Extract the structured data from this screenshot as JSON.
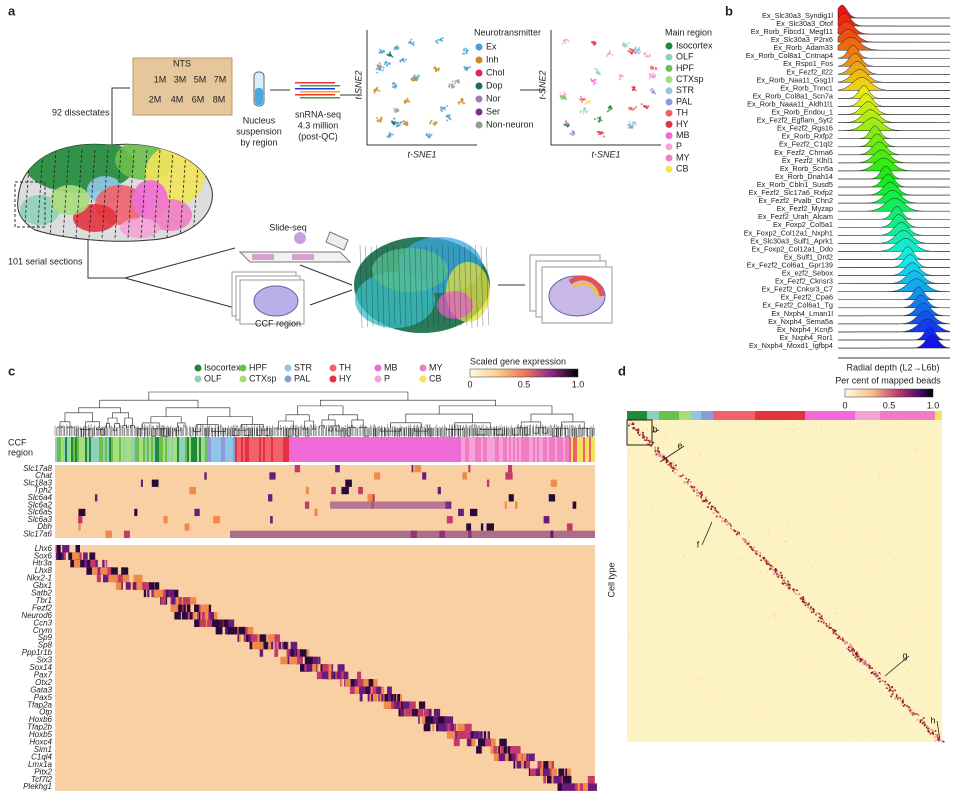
{
  "panel_a": {
    "label": "a",
    "nts": {
      "title": "NTS",
      "slices": [
        "1M",
        "3M",
        "5M",
        "7M",
        "2M",
        "4M",
        "6M",
        "8M"
      ]
    },
    "dissectates": "92 dissectates",
    "nucleus": [
      "Nucleus",
      "suspension",
      "by region"
    ],
    "snrnaseq": [
      "snRNA-seq",
      "4.3 million",
      "(post-QC)"
    ],
    "tsne_y": "t-SNE2",
    "tsne_x": "t-SNE1",
    "neurotransmitter": {
      "title": "Neurotransmitter",
      "items": [
        "Ex",
        "Inh",
        "Chol",
        "Dop",
        "Nor",
        "Ser",
        "Non-neuron"
      ]
    },
    "main_region": {
      "title": "Main region",
      "items": [
        "Isocortex",
        "OLF",
        "HPF",
        "CTXsp",
        "STR",
        "PAL",
        "TH",
        "HY",
        "MB",
        "P",
        "MY",
        "CB"
      ]
    },
    "sections": "101 serial sections",
    "slideseq": "Slide-seq",
    "ccf": "CCF region"
  },
  "panel_b": {
    "label": "b",
    "cell_types": [
      "Ex_Slc30a3_Syndig1l",
      "Ex_Slc30a3_Otof",
      "Ex_Rorb_Fibcd1_Megf11",
      "Ex_Slc30a3_P2rx6",
      "Ex_Rorb_Adam33",
      "Ex_Rorb_Col8a1_Cntnap4",
      "Ex_Rspo1_Fos",
      "Ex_Fezf2_Il22",
      "Ex_Rorb_Naa11_Gsg1l",
      "Ex_Rorb_Tnnc1",
      "Ex_Rorb_Col8a1_Scn7a",
      "Ex_Rorb_Naaa11_Aldh1l1",
      "Ex_Rorb_Endou_1",
      "Ex_Fezf2_Egflam_Syt2",
      "Ex_Fezf2_Rgs16",
      "Ex_Rorb_Rxfp2",
      "Ex_Fezf2_C1ql2",
      "Ex_Fezf2_Chrna6",
      "Ex_Fezf2_Klhl1",
      "Ex_Rorb_Scn5a",
      "Ex_Rorb_Dnah14",
      "Ex_Rorb_Cbln1_Susd5",
      "Ex_Fezf2_Slc17a6_Rxfp2",
      "Ex_Fezf2_Pvalb_Chn2",
      "Ex_Fezf2_Myzap",
      "Ex_Fezf2_Urah_Alcam",
      "Ex_Foxp2_Col5a1",
      "Ex_Foxp2_Col12a1_Nxph1",
      "Ex_Slc30a3_Sulf1_Aprk1",
      "Ex_Foxp2_Col12a1_Ddo",
      "Ex_Sulf1_Drd2",
      "Ex_Fezf2_Col6a1_Gpr139",
      "Ex_ezf2_Sebox",
      "Ex_Fezf2_Cknsr3",
      "Ex_Fezf2_Cnksr3_C7",
      "Ex_Fezf2_Cpa6",
      "Ex_Fezf2_Col6a1_Tg",
      "Ex_Nxph4_Lman1l",
      "Ex_Nxph4_Sema5a",
      "Ex_Nxph4_Kcnj5",
      "Ex_Nxph4_Ror1",
      "Ex_Nxph4_Moxd1_Igfbp4"
    ],
    "axis": "Radial depth (L2→L6b)"
  },
  "panel_c": {
    "label": "c",
    "legend": [
      "Isocortex",
      "OLF",
      "HPF",
      "CTXsp",
      "STR",
      "PAL",
      "TH",
      "HY",
      "MB",
      "P",
      "MY",
      "CB"
    ],
    "colorbar": {
      "title": "Scaled gene expression",
      "ticks": [
        "0",
        "0.5",
        "1.0"
      ]
    },
    "ccf_label": [
      "CCF",
      "region"
    ],
    "genes_top": [
      "Slc17a8",
      "Chat",
      "Slc18a3",
      "Tph2",
      "Slc6a4",
      "Slc6a2",
      "Slc6a5",
      "Slc6a3",
      "Dbh",
      "Slc17a6"
    ],
    "genes_bottom": [
      "Lhx6",
      "Sox6",
      "Htr3a",
      "Lhx8",
      "Nkx2-1",
      "Gbx1",
      "Satb2",
      "Tbr1",
      "Fezf2",
      "Neurod6",
      "Ccn3",
      "Crym",
      "Sp9",
      "Sp8",
      "Ppp1r1b",
      "Six3",
      "Sox14",
      "Pax7",
      "Otx2",
      "Gata3",
      "Pax5",
      "Tfap2a",
      "Otp",
      "Hoxb6",
      "Tfap2b",
      "Hoxb5",
      "Hoxc4",
      "Sim1",
      "C1ql4",
      "Lmx1a",
      "Pitx2",
      "Tcf7l2",
      "Plekhg1"
    ]
  },
  "panel_d": {
    "label": "d",
    "colorbar": {
      "title": "Per cent of mapped beads",
      "ticks": [
        "0",
        "0.5",
        "1.0"
      ]
    },
    "y_label": "Cell type",
    "callouts": [
      "b",
      "e",
      "f",
      "g",
      "h"
    ]
  }
}
